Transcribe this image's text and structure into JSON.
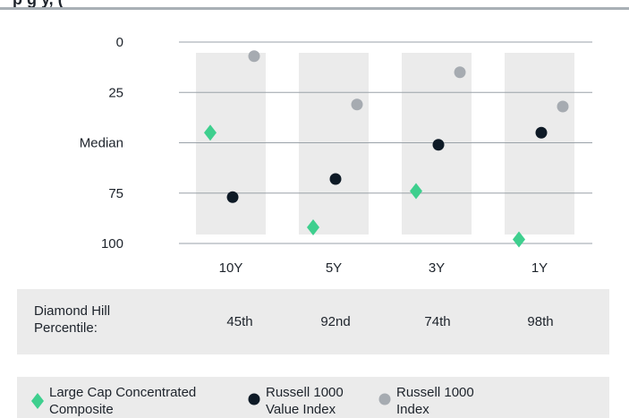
{
  "header": {
    "title_fragment": "p                                                  g  y, ("
  },
  "colors": {
    "composite": "#3ecf8e",
    "value_index": "#0e1a26",
    "russell_1000": "#a6abb1",
    "column_band": "#ebebeb",
    "gridline": "#9aa1a8"
  },
  "chart_data": {
    "type": "scatter",
    "categories": [
      "10Y",
      "5Y",
      "3Y",
      "1Y"
    ],
    "y_tick_labels": [
      "0",
      "25",
      "Median",
      "75",
      "100"
    ],
    "y_tick_values": [
      0,
      25,
      50,
      75,
      100
    ],
    "ylim": [
      100,
      0
    ],
    "y_inverted": true,
    "grid": true,
    "series": [
      {
        "name": "Large Cap Concentrated Composite",
        "marker": "diamond-icon",
        "values": [
          45,
          92,
          74,
          98
        ]
      },
      {
        "name": "Russell 1000 Value Index",
        "marker": "circle-icon",
        "values": [
          77,
          68,
          51,
          45
        ]
      },
      {
        "name": "Russell 1000 Index",
        "marker": "circle-icon",
        "values": [
          7,
          31,
          15,
          32
        ]
      }
    ]
  },
  "percentile_table": {
    "label": "Diamond Hill\nPercentile:",
    "values": [
      "45th",
      "92nd",
      "74th",
      "98th"
    ]
  },
  "legend": [
    {
      "label": "Large Cap Concentrated\nComposite",
      "icon": "diamond-icon"
    },
    {
      "label": "Russell 1000\nValue Index",
      "icon": "circle-icon"
    },
    {
      "label": "Russell 1000\nIndex",
      "icon": "circle-icon"
    }
  ]
}
